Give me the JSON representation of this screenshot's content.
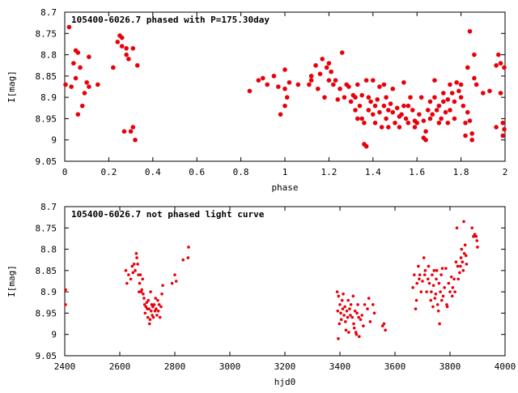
{
  "chart_data": [
    {
      "type": "scatter",
      "title": "105400-6026.7 phased with P=175.30day",
      "xlabel": "phase",
      "ylabel": "I[mag]",
      "xlim": [
        0,
        2
      ],
      "ylim": [
        8.7,
        9.05
      ],
      "y_inverted": true,
      "grid": false,
      "xticks": [
        0,
        0.2,
        0.4,
        0.6,
        0.8,
        1,
        1.2,
        1.4,
        1.6,
        1.8,
        2
      ],
      "xtick_labels": [
        "0",
        "0.2",
        "0.4",
        "0.6",
        "0.8",
        "1",
        "1.2",
        "1.4",
        "1.6",
        "1.8",
        "2"
      ],
      "yticks": [
        8.7,
        8.75,
        8.8,
        8.85,
        8.9,
        8.95,
        9,
        9.05
      ],
      "ytick_labels": [
        "8.7",
        "8.75",
        "8.8",
        "8.85",
        "8.9",
        "8.95",
        "9",
        "9.05"
      ],
      "marker_color": "#e8000b",
      "points": [
        [
          0.0,
          8.87
        ],
        [
          0.02,
          8.735
        ],
        [
          0.03,
          8.875
        ],
        [
          0.04,
          8.82
        ],
        [
          0.05,
          8.79
        ],
        [
          0.05,
          8.855
        ],
        [
          0.06,
          8.795
        ],
        [
          0.06,
          8.94
        ],
        [
          0.07,
          8.83
        ],
        [
          0.08,
          8.92
        ],
        [
          0.09,
          8.89
        ],
        [
          0.1,
          8.865
        ],
        [
          0.11,
          8.805
        ],
        [
          0.11,
          8.875
        ],
        [
          0.15,
          8.87
        ],
        [
          0.22,
          8.83
        ],
        [
          0.24,
          8.77
        ],
        [
          0.25,
          8.755
        ],
        [
          0.26,
          8.76
        ],
        [
          0.26,
          8.78
        ],
        [
          0.27,
          8.98
        ],
        [
          0.28,
          8.785
        ],
        [
          0.28,
          8.8
        ],
        [
          0.29,
          8.81
        ],
        [
          0.3,
          8.98
        ],
        [
          0.31,
          8.97
        ],
        [
          0.31,
          8.785
        ],
        [
          0.32,
          9.0
        ],
        [
          0.33,
          8.825
        ],
        [
          0.84,
          8.885
        ],
        [
          0.88,
          8.86
        ],
        [
          0.9,
          8.855
        ],
        [
          0.92,
          8.87
        ],
        [
          0.95,
          8.85
        ],
        [
          0.97,
          8.875
        ],
        [
          0.98,
          8.94
        ],
        [
          1.0,
          8.88
        ],
        [
          1.0,
          8.835
        ],
        [
          1.01,
          8.9
        ],
        [
          1.0,
          8.92
        ],
        [
          1.02,
          8.865
        ],
        [
          1.06,
          8.87
        ],
        [
          1.11,
          8.87
        ],
        [
          1.12,
          8.85
        ],
        [
          1.12,
          8.86
        ],
        [
          1.14,
          8.825
        ],
        [
          1.15,
          8.88
        ],
        [
          1.16,
          8.845
        ],
        [
          1.17,
          8.81
        ],
        [
          1.18,
          8.9
        ],
        [
          1.19,
          8.83
        ],
        [
          1.2,
          8.86
        ],
        [
          1.2,
          8.82
        ],
        [
          1.21,
          8.84
        ],
        [
          1.22,
          8.87
        ],
        [
          1.23,
          8.86
        ],
        [
          1.24,
          8.905
        ],
        [
          1.25,
          8.88
        ],
        [
          1.26,
          8.795
        ],
        [
          1.27,
          8.9
        ],
        [
          1.28,
          8.87
        ],
        [
          1.29,
          8.875
        ],
        [
          1.3,
          8.91
        ],
        [
          1.31,
          8.895
        ],
        [
          1.32,
          8.9
        ],
        [
          1.32,
          8.93
        ],
        [
          1.33,
          8.95
        ],
        [
          1.33,
          8.87
        ],
        [
          1.34,
          8.92
        ],
        [
          1.35,
          8.895
        ],
        [
          1.35,
          8.95
        ],
        [
          1.36,
          8.96
        ],
        [
          1.36,
          9.01
        ],
        [
          1.37,
          9.015
        ],
        [
          1.37,
          8.86
        ],
        [
          1.38,
          8.9
        ],
        [
          1.38,
          8.93
        ],
        [
          1.39,
          8.91
        ],
        [
          1.4,
          8.86
        ],
        [
          1.4,
          8.94
        ],
        [
          1.41,
          8.92
        ],
        [
          1.41,
          8.96
        ],
        [
          1.42,
          8.905
        ],
        [
          1.43,
          8.875
        ],
        [
          1.43,
          8.935
        ],
        [
          1.44,
          8.97
        ],
        [
          1.45,
          8.92
        ],
        [
          1.45,
          8.87
        ],
        [
          1.46,
          8.95
        ],
        [
          1.46,
          8.9
        ],
        [
          1.47,
          8.93
        ],
        [
          1.47,
          8.97
        ],
        [
          1.48,
          8.915
        ],
        [
          1.49,
          8.935
        ],
        [
          1.49,
          8.88
        ],
        [
          1.5,
          8.96
        ],
        [
          1.51,
          8.925
        ],
        [
          1.52,
          8.945
        ],
        [
          1.52,
          8.97
        ],
        [
          1.53,
          8.94
        ],
        [
          1.54,
          8.865
        ],
        [
          1.54,
          8.92
        ],
        [
          1.55,
          8.95
        ],
        [
          1.56,
          8.96
        ],
        [
          1.56,
          8.92
        ],
        [
          1.57,
          8.9
        ],
        [
          1.58,
          8.93
        ],
        [
          1.59,
          8.955
        ],
        [
          1.59,
          8.97
        ],
        [
          1.6,
          8.96
        ],
        [
          1.61,
          8.94
        ],
        [
          1.62,
          8.9
        ],
        [
          1.63,
          8.955
        ],
        [
          1.63,
          8.995
        ],
        [
          1.64,
          9.0
        ],
        [
          1.64,
          8.98
        ],
        [
          1.65,
          8.93
        ],
        [
          1.66,
          8.95
        ],
        [
          1.66,
          8.91
        ],
        [
          1.67,
          8.94
        ],
        [
          1.68,
          8.9
        ],
        [
          1.68,
          8.86
        ],
        [
          1.69,
          8.93
        ],
        [
          1.7,
          8.96
        ],
        [
          1.7,
          8.92
        ],
        [
          1.71,
          8.95
        ],
        [
          1.72,
          8.91
        ],
        [
          1.72,
          8.89
        ],
        [
          1.73,
          8.935
        ],
        [
          1.74,
          8.96
        ],
        [
          1.74,
          8.905
        ],
        [
          1.75,
          8.87
        ],
        [
          1.75,
          8.93
        ],
        [
          1.76,
          8.89
        ],
        [
          1.77,
          8.91
        ],
        [
          1.77,
          8.95
        ],
        [
          1.78,
          8.865
        ],
        [
          1.79,
          8.885
        ],
        [
          1.8,
          8.9
        ],
        [
          1.8,
          8.87
        ],
        [
          1.81,
          8.92
        ],
        [
          1.82,
          8.96
        ],
        [
          1.82,
          8.99
        ],
        [
          1.83,
          8.83
        ],
        [
          1.83,
          8.935
        ],
        [
          1.84,
          8.745
        ],
        [
          1.84,
          8.955
        ],
        [
          1.85,
          9.0
        ],
        [
          1.85,
          8.985
        ],
        [
          1.86,
          8.8
        ],
        [
          1.86,
          8.855
        ],
        [
          1.87,
          8.87
        ],
        [
          1.9,
          8.89
        ],
        [
          1.93,
          8.885
        ],
        [
          1.96,
          8.825
        ],
        [
          1.96,
          8.97
        ],
        [
          1.97,
          8.8
        ],
        [
          1.98,
          8.89
        ],
        [
          1.98,
          8.82
        ],
        [
          1.99,
          8.96
        ],
        [
          1.99,
          8.99
        ],
        [
          2.0,
          8.83
        ],
        [
          2.0,
          8.975
        ]
      ]
    },
    {
      "type": "scatter",
      "title": "105400-6026.7 not phased light curve",
      "xlabel": "hjd0",
      "ylabel": "I[mag]",
      "xlim": [
        2400,
        4000
      ],
      "ylim": [
        8.7,
        9.05
      ],
      "y_inverted": true,
      "grid": false,
      "xticks": [
        2400,
        2600,
        2800,
        3000,
        3200,
        3400,
        3600,
        3800,
        4000
      ],
      "xtick_labels": [
        "2400",
        "2600",
        "2800",
        "3000",
        "3200",
        "3400",
        "3600",
        "3800",
        "4000"
      ],
      "yticks": [
        8.7,
        8.75,
        8.8,
        8.85,
        8.9,
        8.95,
        9,
        9.05
      ],
      "ytick_labels": [
        "8.7",
        "8.75",
        "8.8",
        "8.85",
        "8.9",
        "8.95",
        "9",
        "9.05"
      ],
      "marker_color": "#e8000b",
      "points": [
        [
          2400,
          8.895
        ],
        [
          2400,
          8.93
        ],
        [
          2622,
          8.85
        ],
        [
          2626,
          8.88
        ],
        [
          2632,
          8.86
        ],
        [
          2640,
          8.87
        ],
        [
          2645,
          8.84
        ],
        [
          2648,
          8.855
        ],
        [
          2652,
          8.835
        ],
        [
          2656,
          8.85
        ],
        [
          2660,
          8.81
        ],
        [
          2662,
          8.82
        ],
        [
          2665,
          8.835
        ],
        [
          2668,
          8.86
        ],
        [
          2670,
          8.9
        ],
        [
          2672,
          8.88
        ],
        [
          2675,
          8.86
        ],
        [
          2678,
          8.9
        ],
        [
          2680,
          8.895
        ],
        [
          2683,
          8.87
        ],
        [
          2685,
          8.905
        ],
        [
          2688,
          8.915
        ],
        [
          2690,
          8.93
        ],
        [
          2692,
          8.95
        ],
        [
          2695,
          8.935
        ],
        [
          2698,
          8.925
        ],
        [
          2700,
          8.94
        ],
        [
          2702,
          8.96
        ],
        [
          2704,
          8.92
        ],
        [
          2706,
          8.94
        ],
        [
          2708,
          8.975
        ],
        [
          2710,
          8.965
        ],
        [
          2712,
          8.9
        ],
        [
          2714,
          8.945
        ],
        [
          2716,
          8.93
        ],
        [
          2718,
          8.955
        ],
        [
          2720,
          8.935
        ],
        [
          2722,
          8.96
        ],
        [
          2725,
          8.93
        ],
        [
          2728,
          8.945
        ],
        [
          2730,
          8.915
        ],
        [
          2732,
          8.94
        ],
        [
          2735,
          8.955
        ],
        [
          2738,
          8.92
        ],
        [
          2740,
          8.945
        ],
        [
          2743,
          8.93
        ],
        [
          2746,
          8.96
        ],
        [
          2750,
          8.935
        ],
        [
          2753,
          8.905
        ],
        [
          2756,
          8.885
        ],
        [
          2790,
          8.88
        ],
        [
          2800,
          8.86
        ],
        [
          2805,
          8.875
        ],
        [
          2830,
          8.825
        ],
        [
          2848,
          8.82
        ],
        [
          2850,
          8.795
        ],
        [
          3390,
          8.9
        ],
        [
          3392,
          8.945
        ],
        [
          3394,
          9.01
        ],
        [
          3395,
          8.91
        ],
        [
          3398,
          8.975
        ],
        [
          3400,
          8.93
        ],
        [
          3403,
          8.95
        ],
        [
          3405,
          8.965
        ],
        [
          3408,
          8.92
        ],
        [
          3410,
          8.94
        ],
        [
          3412,
          8.905
        ],
        [
          3415,
          8.955
        ],
        [
          3418,
          8.935
        ],
        [
          3420,
          8.97
        ],
        [
          3422,
          8.99
        ],
        [
          3425,
          8.945
        ],
        [
          3428,
          8.96
        ],
        [
          3430,
          8.92
        ],
        [
          3432,
          8.995
        ],
        [
          3435,
          8.94
        ],
        [
          3438,
          8.955
        ],
        [
          3440,
          8.93
        ],
        [
          3445,
          8.96
        ],
        [
          3448,
          8.91
        ],
        [
          3450,
          8.975
        ],
        [
          3452,
          8.985
        ],
        [
          3455,
          8.945
        ],
        [
          3458,
          8.995
        ],
        [
          3460,
          9.0
        ],
        [
          3462,
          8.95
        ],
        [
          3465,
          8.93
        ],
        [
          3468,
          8.96
        ],
        [
          3470,
          9.005
        ],
        [
          3475,
          8.965
        ],
        [
          3480,
          8.955
        ],
        [
          3485,
          8.98
        ],
        [
          3490,
          8.93
        ],
        [
          3500,
          8.94
        ],
        [
          3505,
          8.915
        ],
        [
          3510,
          8.97
        ],
        [
          3520,
          8.93
        ],
        [
          3525,
          8.95
        ],
        [
          3555,
          8.98
        ],
        [
          3560,
          8.975
        ],
        [
          3565,
          8.99
        ],
        [
          3665,
          8.89
        ],
        [
          3670,
          8.86
        ],
        [
          3675,
          8.94
        ],
        [
          3678,
          8.92
        ],
        [
          3680,
          8.88
        ],
        [
          3685,
          8.84
        ],
        [
          3688,
          8.87
        ],
        [
          3690,
          8.86
        ],
        [
          3695,
          8.9
        ],
        [
          3700,
          8.875
        ],
        [
          3705,
          8.82
        ],
        [
          3708,
          8.86
        ],
        [
          3710,
          8.85
        ],
        [
          3715,
          8.9
        ],
        [
          3720,
          8.87
        ],
        [
          3722,
          8.84
        ],
        [
          3725,
          8.88
        ],
        [
          3730,
          8.92
        ],
        [
          3732,
          8.9
        ],
        [
          3735,
          8.86
        ],
        [
          3738,
          8.935
        ],
        [
          3740,
          8.885
        ],
        [
          3742,
          8.85
        ],
        [
          3745,
          8.915
        ],
        [
          3748,
          8.905
        ],
        [
          3750,
          8.87
        ],
        [
          3752,
          8.85
        ],
        [
          3755,
          8.93
        ],
        [
          3758,
          8.945
        ],
        [
          3760,
          8.88
        ],
        [
          3762,
          8.975
        ],
        [
          3765,
          8.9
        ],
        [
          3768,
          8.86
        ],
        [
          3770,
          8.92
        ],
        [
          3772,
          8.845
        ],
        [
          3775,
          8.91
        ],
        [
          3780,
          8.89
        ],
        [
          3785,
          8.845
        ],
        [
          3788,
          8.93
        ],
        [
          3790,
          8.935
        ],
        [
          3795,
          8.88
        ],
        [
          3800,
          8.9
        ],
        [
          3805,
          8.865
        ],
        [
          3808,
          8.91
        ],
        [
          3810,
          8.89
        ],
        [
          3815,
          8.87
        ],
        [
          3818,
          8.9
        ],
        [
          3822,
          8.83
        ],
        [
          3825,
          8.75
        ],
        [
          3828,
          8.84
        ],
        [
          3830,
          8.87
        ],
        [
          3835,
          8.855
        ],
        [
          3838,
          8.84
        ],
        [
          3840,
          8.82
        ],
        [
          3842,
          8.8
        ],
        [
          3845,
          8.83
        ],
        [
          3848,
          8.85
        ],
        [
          3850,
          8.735
        ],
        [
          3852,
          8.81
        ],
        [
          3855,
          8.79
        ],
        [
          3858,
          8.815
        ],
        [
          3860,
          8.835
        ],
        [
          3880,
          8.75
        ],
        [
          3885,
          8.77
        ],
        [
          3890,
          8.765
        ],
        [
          3895,
          8.77
        ],
        [
          3898,
          8.78
        ],
        [
          3900,
          8.795
        ]
      ]
    }
  ]
}
